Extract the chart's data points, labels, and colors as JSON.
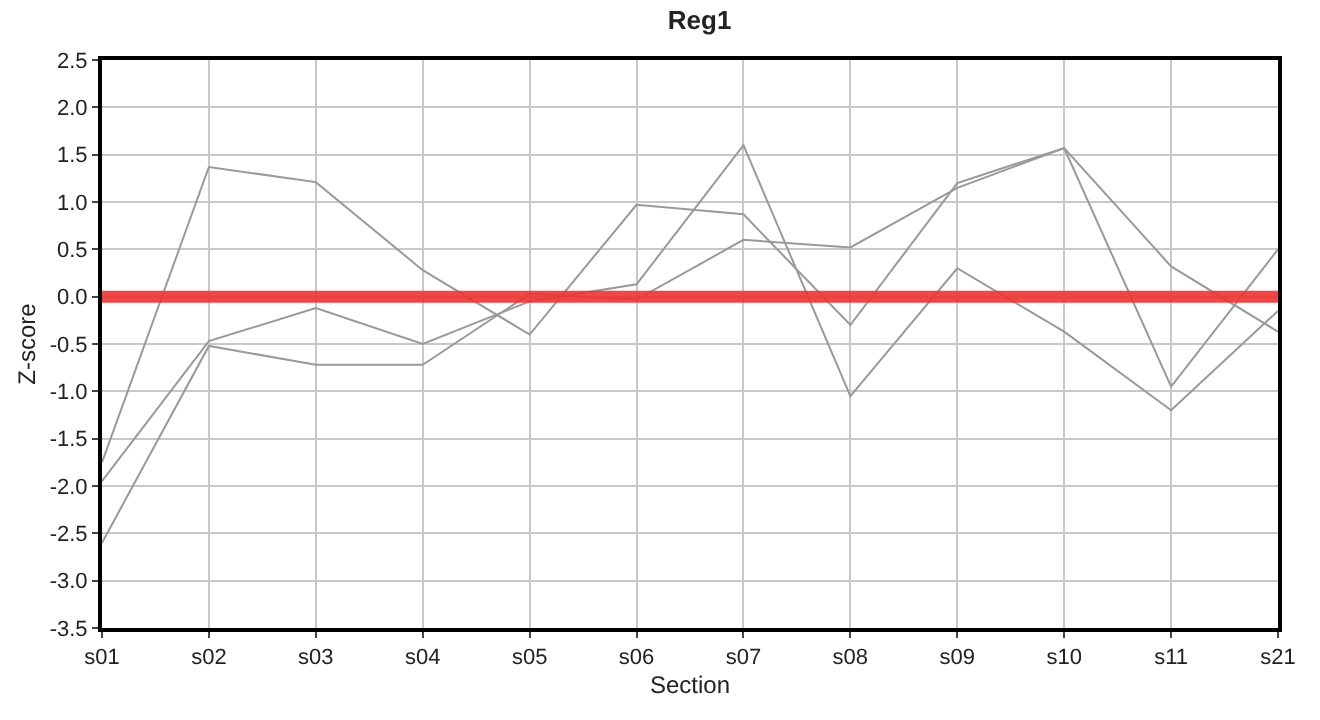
{
  "chart_data": {
    "type": "line",
    "title": "Reg1",
    "xlabel": "Section",
    "ylabel": "Z-score",
    "categories": [
      "s01",
      "s02",
      "s03",
      "s04",
      "s05",
      "s06",
      "s07",
      "s08",
      "s09",
      "s10",
      "s11",
      "s21"
    ],
    "series": [
      {
        "color": "#999999",
        "values": [
          -1.75,
          1.37,
          1.21,
          0.28,
          -0.4,
          0.97,
          0.87,
          -0.3,
          1.2,
          1.57,
          0.32,
          -0.37
        ]
      },
      {
        "color": "#999999",
        "values": [
          -1.95,
          -0.47,
          -0.12,
          -0.5,
          -0.05,
          0.13,
          1.6,
          -1.05,
          0.3,
          -0.37,
          -1.2,
          -0.15
        ]
      },
      {
        "color": "#999999",
        "values": [
          -2.6,
          -0.52,
          -0.72,
          -0.72,
          0.03,
          -0.03,
          0.6,
          0.52,
          1.15,
          1.57,
          -0.95,
          0.5
        ]
      }
    ],
    "ylim": [
      -3.5,
      2.5
    ],
    "yticks": [
      {
        "value": -3.5,
        "label": "-3.5"
      },
      {
        "value": -3,
        "label": "-3.0"
      },
      {
        "value": -2.5,
        "label": "-2.5"
      },
      {
        "value": -2,
        "label": "-2.0"
      },
      {
        "value": -1.5,
        "label": "-1.5"
      },
      {
        "value": -1,
        "label": "-1.0"
      },
      {
        "value": -0.5,
        "label": "-0.5"
      },
      {
        "value": 0,
        "label": "0.0"
      },
      {
        "value": 0.5,
        "label": "0.5"
      },
      {
        "value": 1,
        "label": "1.0"
      },
      {
        "value": 1.5,
        "label": "1.5"
      },
      {
        "value": 2,
        "label": "2.0"
      },
      {
        "value": 2.5,
        "label": "2.5"
      }
    ],
    "ref_lines": [
      {
        "axis": "y",
        "value": 0,
        "color": "#ee3333"
      }
    ],
    "grid": true,
    "marker": "none",
    "line_style": "solid"
  }
}
